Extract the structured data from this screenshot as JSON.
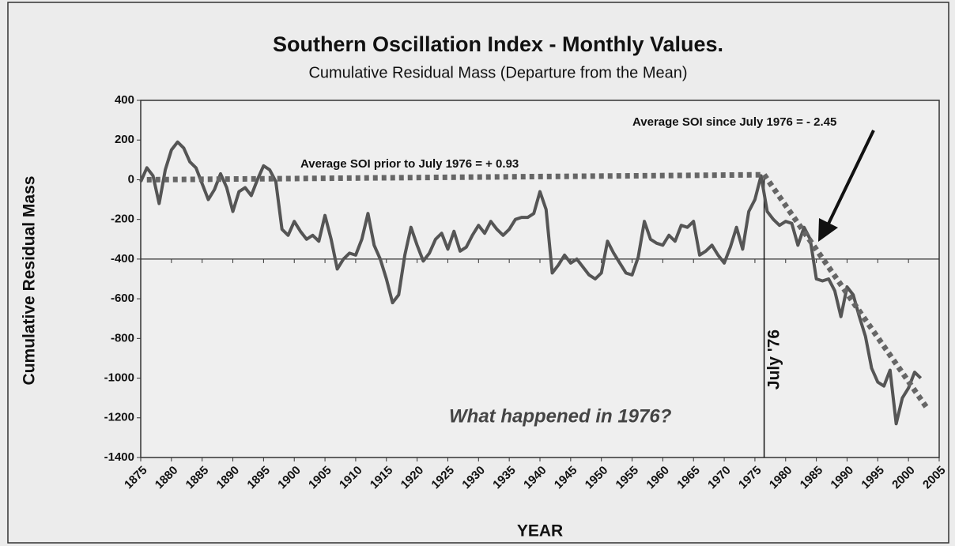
{
  "chart_data": {
    "type": "line",
    "title": "Southern Oscillation Index - Monthly Values.",
    "subtitle": "Cumulative Residual Mass (Departure from the Mean)",
    "y_label": "Cumulative Residual Mass",
    "x_label": "YEAR",
    "annotations": [
      "Average SOI prior to July 1976 = + 0.93",
      "Average SOI  since July 1976 = - 2.45",
      "July '76",
      "What happened in 1976?"
    ],
    "vline": 1976.5,
    "axis_crossing": -400,
    "xlim": [
      1875,
      2005
    ],
    "xticks": [
      1875,
      1880,
      1885,
      1890,
      1895,
      1900,
      1905,
      1910,
      1915,
      1920,
      1925,
      1930,
      1935,
      1940,
      1945,
      1950,
      1955,
      1960,
      1965,
      1970,
      1975,
      1980,
      1985,
      1990,
      1995,
      2000,
      2005
    ],
    "ylim": [
      -1400,
      400
    ],
    "yticks": [
      -1400,
      -1200,
      -1000,
      -800,
      -600,
      -400,
      -200,
      0,
      200,
      400
    ],
    "series": [
      {
        "color": "#555555",
        "style": "solid",
        "x": [
          1875,
          1876,
          1877,
          1878,
          1879,
          1880,
          1881,
          1882,
          1883,
          1884,
          1885,
          1886,
          1887,
          1888,
          1889,
          1890,
          1891,
          1892,
          1893,
          1894,
          1895,
          1896,
          1897,
          1898,
          1899,
          1900,
          1901,
          1902,
          1903,
          1904,
          1905,
          1906,
          1907,
          1908,
          1909,
          1910,
          1911,
          1912,
          1913,
          1914,
          1915,
          1916,
          1917,
          1918,
          1919,
          1920,
          1921,
          1922,
          1923,
          1924,
          1925,
          1926,
          1927,
          1928,
          1929,
          1930,
          1931,
          1932,
          1933,
          1934,
          1935,
          1936,
          1937,
          1938,
          1939,
          1940,
          1941,
          1942,
          1943,
          1944,
          1945,
          1946,
          1947,
          1948,
          1949,
          1950,
          1951,
          1952,
          1953,
          1954,
          1955,
          1956,
          1957,
          1958,
          1959,
          1960,
          1961,
          1962,
          1963,
          1964,
          1965,
          1966,
          1967,
          1968,
          1969,
          1970,
          1971,
          1972,
          1973,
          1974,
          1975,
          1976,
          1977,
          1978,
          1979,
          1980,
          1981,
          1982,
          1983,
          1984,
          1985,
          1986,
          1987,
          1988,
          1989,
          1990,
          1991,
          1992,
          1993,
          1994,
          1995,
          1996,
          1997,
          1998,
          1999,
          2000,
          2001,
          2002
        ],
        "values": [
          -10,
          60,
          20,
          -120,
          50,
          150,
          190,
          160,
          90,
          60,
          -20,
          -100,
          -50,
          30,
          -40,
          -160,
          -60,
          -40,
          -80,
          0,
          70,
          50,
          -10,
          -250,
          -280,
          -210,
          -260,
          -300,
          -280,
          -310,
          -180,
          -300,
          -450,
          -400,
          -370,
          -380,
          -300,
          -170,
          -330,
          -400,
          -500,
          -620,
          -580,
          -380,
          -240,
          -330,
          -410,
          -370,
          -300,
          -270,
          -350,
          -260,
          -360,
          -340,
          -280,
          -230,
          -270,
          -210,
          -250,
          -280,
          -250,
          -200,
          -190,
          -190,
          -170,
          -60,
          -150,
          -470,
          -430,
          -380,
          -420,
          -400,
          -440,
          -480,
          -500,
          -470,
          -310,
          -370,
          -420,
          -470,
          -480,
          -390,
          -210,
          -300,
          -320,
          -330,
          -280,
          -310,
          -230,
          -240,
          -210,
          -380,
          -360,
          -330,
          -380,
          -420,
          -340,
          -240,
          -350,
          -160,
          -100,
          20,
          -160,
          -200,
          -230,
          -210,
          -220,
          -330,
          -240,
          -300,
          -500,
          -510,
          -500,
          -560,
          -690,
          -540,
          -580,
          -690,
          -790,
          -950,
          -1020,
          -1040,
          -960,
          -1230,
          -1100,
          -1050,
          -970,
          -1000
        ]
      },
      {
        "color": "#666666",
        "style": "dotted",
        "x": [
          1876,
          1976.5
        ],
        "values": [
          0,
          25
        ]
      },
      {
        "color": "#666666",
        "style": "dotted",
        "x": [
          1976.5,
          2003
        ],
        "values": [
          25,
          -1150
        ]
      }
    ]
  }
}
